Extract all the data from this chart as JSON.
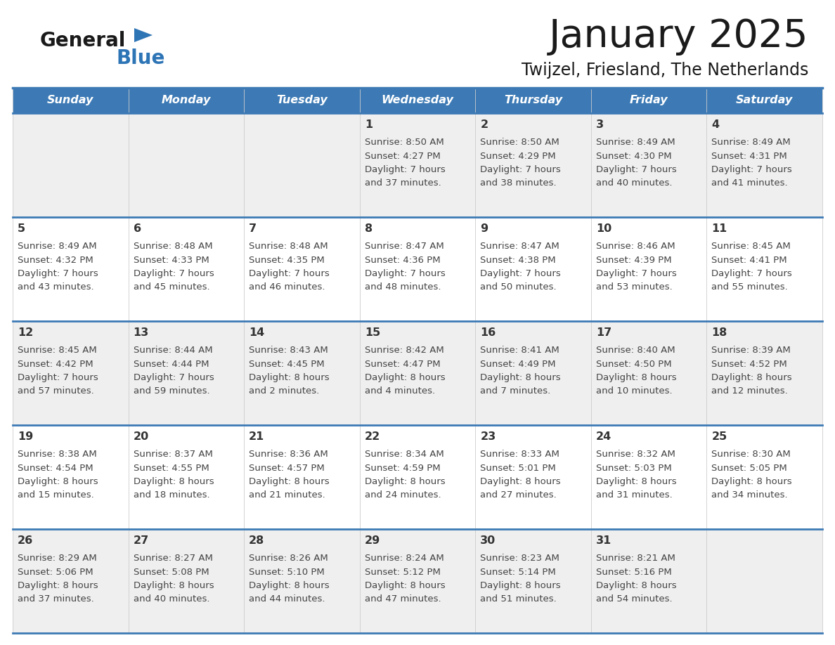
{
  "title": "January 2025",
  "subtitle": "Twijzel, Friesland, The Netherlands",
  "days_of_week": [
    "Sunday",
    "Monday",
    "Tuesday",
    "Wednesday",
    "Thursday",
    "Friday",
    "Saturday"
  ],
  "header_bg": "#3d7ab5",
  "header_text_color": "#ffffff",
  "row_bg_odd": "#efefef",
  "row_bg_even": "#ffffff",
  "divider_color": "#3d7ab5",
  "text_color": "#444444",
  "date_color": "#333333",
  "calendar": [
    [
      null,
      null,
      null,
      {
        "day": 1,
        "sunrise": "8:50 AM",
        "sunset": "4:27 PM",
        "daylight_h": "7 hours",
        "daylight_m": "37 minutes"
      },
      {
        "day": 2,
        "sunrise": "8:50 AM",
        "sunset": "4:29 PM",
        "daylight_h": "7 hours",
        "daylight_m": "38 minutes"
      },
      {
        "day": 3,
        "sunrise": "8:49 AM",
        "sunset": "4:30 PM",
        "daylight_h": "7 hours",
        "daylight_m": "40 minutes"
      },
      {
        "day": 4,
        "sunrise": "8:49 AM",
        "sunset": "4:31 PM",
        "daylight_h": "7 hours",
        "daylight_m": "41 minutes"
      }
    ],
    [
      {
        "day": 5,
        "sunrise": "8:49 AM",
        "sunset": "4:32 PM",
        "daylight_h": "7 hours",
        "daylight_m": "43 minutes"
      },
      {
        "day": 6,
        "sunrise": "8:48 AM",
        "sunset": "4:33 PM",
        "daylight_h": "7 hours",
        "daylight_m": "45 minutes"
      },
      {
        "day": 7,
        "sunrise": "8:48 AM",
        "sunset": "4:35 PM",
        "daylight_h": "7 hours",
        "daylight_m": "46 minutes"
      },
      {
        "day": 8,
        "sunrise": "8:47 AM",
        "sunset": "4:36 PM",
        "daylight_h": "7 hours",
        "daylight_m": "48 minutes"
      },
      {
        "day": 9,
        "sunrise": "8:47 AM",
        "sunset": "4:38 PM",
        "daylight_h": "7 hours",
        "daylight_m": "50 minutes"
      },
      {
        "day": 10,
        "sunrise": "8:46 AM",
        "sunset": "4:39 PM",
        "daylight_h": "7 hours",
        "daylight_m": "53 minutes"
      },
      {
        "day": 11,
        "sunrise": "8:45 AM",
        "sunset": "4:41 PM",
        "daylight_h": "7 hours",
        "daylight_m": "55 minutes"
      }
    ],
    [
      {
        "day": 12,
        "sunrise": "8:45 AM",
        "sunset": "4:42 PM",
        "daylight_h": "7 hours",
        "daylight_m": "57 minutes"
      },
      {
        "day": 13,
        "sunrise": "8:44 AM",
        "sunset": "4:44 PM",
        "daylight_h": "7 hours",
        "daylight_m": "59 minutes"
      },
      {
        "day": 14,
        "sunrise": "8:43 AM",
        "sunset": "4:45 PM",
        "daylight_h": "8 hours",
        "daylight_m": "2 minutes"
      },
      {
        "day": 15,
        "sunrise": "8:42 AM",
        "sunset": "4:47 PM",
        "daylight_h": "8 hours",
        "daylight_m": "4 minutes"
      },
      {
        "day": 16,
        "sunrise": "8:41 AM",
        "sunset": "4:49 PM",
        "daylight_h": "8 hours",
        "daylight_m": "7 minutes"
      },
      {
        "day": 17,
        "sunrise": "8:40 AM",
        "sunset": "4:50 PM",
        "daylight_h": "8 hours",
        "daylight_m": "10 minutes"
      },
      {
        "day": 18,
        "sunrise": "8:39 AM",
        "sunset": "4:52 PM",
        "daylight_h": "8 hours",
        "daylight_m": "12 minutes"
      }
    ],
    [
      {
        "day": 19,
        "sunrise": "8:38 AM",
        "sunset": "4:54 PM",
        "daylight_h": "8 hours",
        "daylight_m": "15 minutes"
      },
      {
        "day": 20,
        "sunrise": "8:37 AM",
        "sunset": "4:55 PM",
        "daylight_h": "8 hours",
        "daylight_m": "18 minutes"
      },
      {
        "day": 21,
        "sunrise": "8:36 AM",
        "sunset": "4:57 PM",
        "daylight_h": "8 hours",
        "daylight_m": "21 minutes"
      },
      {
        "day": 22,
        "sunrise": "8:34 AM",
        "sunset": "4:59 PM",
        "daylight_h": "8 hours",
        "daylight_m": "24 minutes"
      },
      {
        "day": 23,
        "sunrise": "8:33 AM",
        "sunset": "5:01 PM",
        "daylight_h": "8 hours",
        "daylight_m": "27 minutes"
      },
      {
        "day": 24,
        "sunrise": "8:32 AM",
        "sunset": "5:03 PM",
        "daylight_h": "8 hours",
        "daylight_m": "31 minutes"
      },
      {
        "day": 25,
        "sunrise": "8:30 AM",
        "sunset": "5:05 PM",
        "daylight_h": "8 hours",
        "daylight_m": "34 minutes"
      }
    ],
    [
      {
        "day": 26,
        "sunrise": "8:29 AM",
        "sunset": "5:06 PM",
        "daylight_h": "8 hours",
        "daylight_m": "37 minutes"
      },
      {
        "day": 27,
        "sunrise": "8:27 AM",
        "sunset": "5:08 PM",
        "daylight_h": "8 hours",
        "daylight_m": "40 minutes"
      },
      {
        "day": 28,
        "sunrise": "8:26 AM",
        "sunset": "5:10 PM",
        "daylight_h": "8 hours",
        "daylight_m": "44 minutes"
      },
      {
        "day": 29,
        "sunrise": "8:24 AM",
        "sunset": "5:12 PM",
        "daylight_h": "8 hours",
        "daylight_m": "47 minutes"
      },
      {
        "day": 30,
        "sunrise": "8:23 AM",
        "sunset": "5:14 PM",
        "daylight_h": "8 hours",
        "daylight_m": "51 minutes"
      },
      {
        "day": 31,
        "sunrise": "8:21 AM",
        "sunset": "5:16 PM",
        "daylight_h": "8 hours",
        "daylight_m": "54 minutes"
      },
      null
    ]
  ]
}
